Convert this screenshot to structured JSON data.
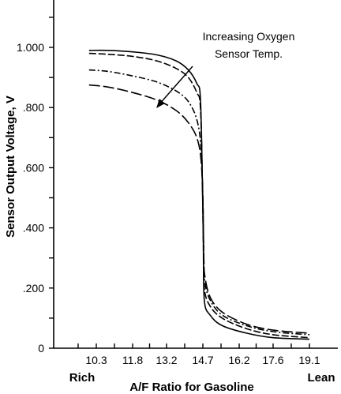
{
  "chart_data": {
    "type": "line",
    "title": "",
    "xlabel": "A/F Ratio for Gasoline",
    "ylabel": "Sensor Output Voltage, V",
    "xlim": [
      9.1,
      19.3
    ],
    "ylim": [
      0,
      1.1
    ],
    "x_ticks": [
      {
        "value": 10.3,
        "label": "10.3"
      },
      {
        "value": 11.8,
        "label": "11.8"
      },
      {
        "value": 13.2,
        "label": "13.2"
      },
      {
        "value": 14.7,
        "label": "14.7"
      },
      {
        "value": 16.2,
        "label": "16.2"
      },
      {
        "value": 17.6,
        "label": "17.6"
      },
      {
        "value": 19.1,
        "label": "19.1"
      }
    ],
    "y_ticks": [
      {
        "value": 0,
        "label": "0"
      },
      {
        "value": 0.2,
        "label": ".200"
      },
      {
        "value": 0.4,
        "label": ".400"
      },
      {
        "value": 0.6,
        "label": ".600"
      },
      {
        "value": 0.8,
        "label": ".800"
      },
      {
        "value": 1.0,
        "label": "1.000"
      }
    ],
    "end_labels": {
      "left": "Rich",
      "right": "Lean"
    },
    "annotation": {
      "line1": "Increasing Oxygen",
      "line2": "Sensor Temp."
    },
    "grid": false,
    "series": [
      {
        "style": "solid",
        "points": [
          [
            10.0,
            0.99
          ],
          [
            10.8,
            0.99
          ],
          [
            11.8,
            0.985
          ],
          [
            12.8,
            0.975
          ],
          [
            13.6,
            0.955
          ],
          [
            14.1,
            0.925
          ],
          [
            14.45,
            0.88
          ],
          [
            14.6,
            0.83
          ],
          [
            14.68,
            0.55
          ],
          [
            14.72,
            0.35
          ],
          [
            14.76,
            0.16
          ],
          [
            15.0,
            0.11
          ],
          [
            15.5,
            0.075
          ],
          [
            16.5,
            0.05
          ],
          [
            17.6,
            0.035
          ],
          [
            19.1,
            0.03
          ]
        ]
      },
      {
        "style": "dashed",
        "points": [
          [
            10.0,
            0.98
          ],
          [
            10.8,
            0.977
          ],
          [
            11.8,
            0.97
          ],
          [
            12.8,
            0.955
          ],
          [
            13.6,
            0.93
          ],
          [
            14.1,
            0.9
          ],
          [
            14.45,
            0.85
          ],
          [
            14.6,
            0.8
          ],
          [
            14.68,
            0.55
          ],
          [
            14.72,
            0.35
          ],
          [
            14.76,
            0.2
          ],
          [
            15.0,
            0.14
          ],
          [
            15.5,
            0.1
          ],
          [
            16.5,
            0.065
          ],
          [
            17.6,
            0.045
          ],
          [
            19.1,
            0.035
          ]
        ]
      },
      {
        "style": "dashdot",
        "points": [
          [
            10.0,
            0.925
          ],
          [
            10.8,
            0.92
          ],
          [
            11.8,
            0.905
          ],
          [
            12.8,
            0.885
          ],
          [
            13.6,
            0.855
          ],
          [
            14.1,
            0.82
          ],
          [
            14.45,
            0.76
          ],
          [
            14.62,
            0.67
          ],
          [
            14.7,
            0.5
          ],
          [
            14.74,
            0.3
          ],
          [
            14.78,
            0.22
          ],
          [
            15.0,
            0.16
          ],
          [
            15.5,
            0.11
          ],
          [
            16.5,
            0.075
          ],
          [
            17.6,
            0.055
          ],
          [
            19.1,
            0.045
          ]
        ]
      },
      {
        "style": "longdash",
        "points": [
          [
            10.0,
            0.875
          ],
          [
            10.8,
            0.868
          ],
          [
            11.8,
            0.85
          ],
          [
            12.8,
            0.825
          ],
          [
            13.6,
            0.79
          ],
          [
            14.1,
            0.75
          ],
          [
            14.45,
            0.7
          ],
          [
            14.62,
            0.63
          ],
          [
            14.7,
            0.5
          ],
          [
            14.74,
            0.3
          ],
          [
            14.78,
            0.24
          ],
          [
            15.0,
            0.17
          ],
          [
            15.5,
            0.12
          ],
          [
            16.5,
            0.08
          ],
          [
            17.6,
            0.06
          ],
          [
            19.1,
            0.05
          ]
        ]
      }
    ]
  }
}
